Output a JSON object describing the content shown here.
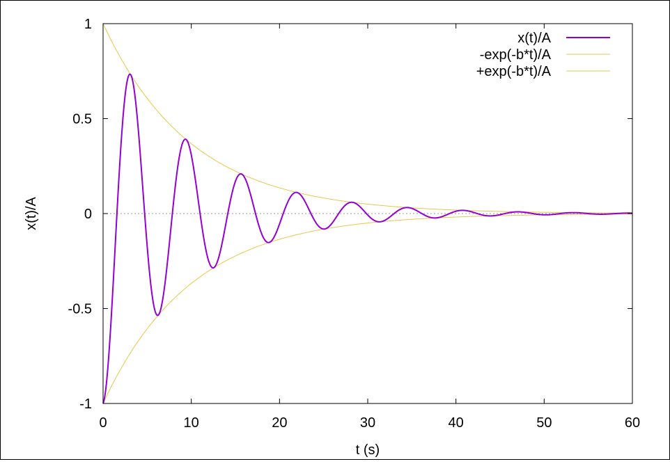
{
  "chart_data": {
    "type": "line",
    "title": "",
    "xlabel": "t (s)",
    "ylabel": "x(t)/A",
    "xlim": [
      0,
      60
    ],
    "ylim": [
      -1,
      1
    ],
    "x_ticks": [
      0,
      10,
      20,
      30,
      40,
      50,
      60
    ],
    "x_tick_labels": [
      "0",
      "10",
      "20",
      "30",
      "40",
      "50",
      "60"
    ],
    "y_ticks": [
      1,
      0.5,
      0,
      -0.5,
      -1
    ],
    "y_tick_labels": [
      "1",
      "0.5",
      "0",
      "-0.5",
      "-1"
    ],
    "grid": false,
    "zero_line": "dotted",
    "legend_position": "top-right",
    "model": {
      "b": 0.1,
      "omega": 1.0,
      "t_min": 0,
      "t_max": 60
    },
    "series": [
      {
        "name": "x(t)/A",
        "formula": "exp(-b*t)*(-cos(omega*t))",
        "color": "#9400d3",
        "width": 2
      },
      {
        "name": "-exp(-b*t)/A",
        "formula": "-exp(-b*t)",
        "color": "#e6c84a",
        "width": 1
      },
      {
        "name": "+exp(-b*t)/A",
        "formula": "exp(-b*t)",
        "color": "#e6c84a",
        "width": 1
      }
    ],
    "extrema": [
      {
        "t": 0,
        "value": -1
      },
      {
        "t": 2.9,
        "value": 0.73
      },
      {
        "t": 6.1,
        "value": -0.54
      },
      {
        "t": 9.2,
        "value": 0.39
      },
      {
        "t": 12.4,
        "value": -0.29
      },
      {
        "t": 15.5,
        "value": 0.21
      },
      {
        "t": 18.7,
        "value": -0.15
      },
      {
        "t": 21.8,
        "value": 0.11
      },
      {
        "t": 25.0,
        "value": -0.08
      },
      {
        "t": 28.1,
        "value": 0.06
      },
      {
        "t": 31.3,
        "value": -0.04
      },
      {
        "t": 34.4,
        "value": 0.03
      },
      {
        "t": 37.5,
        "value": -0.02
      },
      {
        "t": 40.7,
        "value": 0.017
      },
      {
        "t": 43.9,
        "value": -0.012
      },
      {
        "t": 47.0,
        "value": 0.009
      },
      {
        "t": 50.2,
        "value": -0.007
      },
      {
        "t": 53.3,
        "value": 0.005
      },
      {
        "t": 56.5,
        "value": -0.004
      },
      {
        "t": 59.6,
        "value": 0.003
      }
    ],
    "colors": {
      "axes": "#000000",
      "zero_line": "#9a9a9a"
    }
  }
}
